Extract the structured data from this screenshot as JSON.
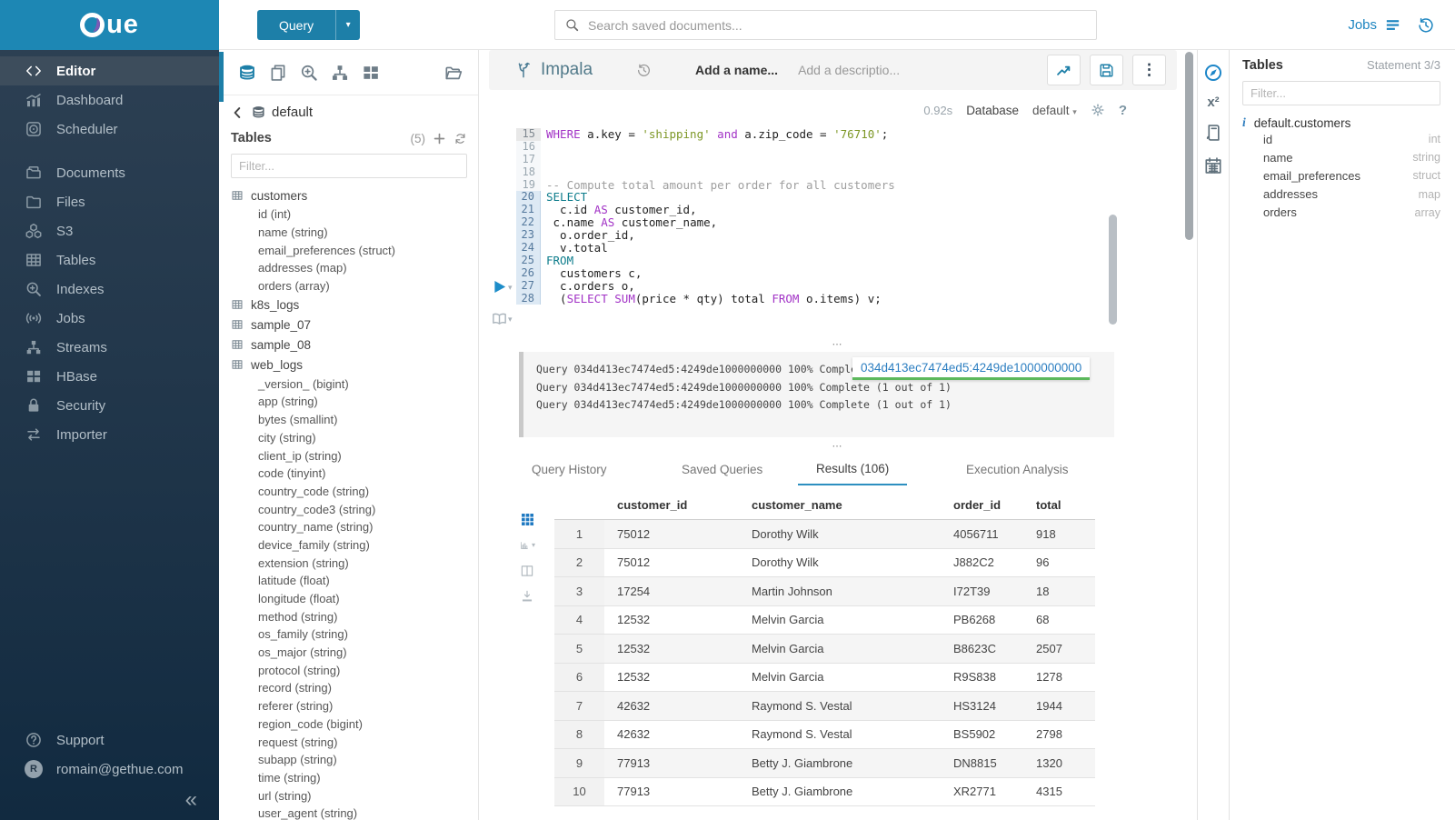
{
  "colors": {
    "brand": "#1d87b4",
    "accent": "#1d85c0",
    "button": "#1d7fa8",
    "success": "#5cb85c",
    "keyword": "#a233c6",
    "keyword_alt": "#0e7d8c",
    "string": "#7d9726",
    "comment": "#9e9e9e",
    "tab_underline": "#2d8fc0"
  },
  "topbar": {
    "query_button": "Query",
    "search_placeholder": "Search saved documents...",
    "jobs_label": "Jobs"
  },
  "brand": {
    "logo_text": "ue"
  },
  "sidebar": {
    "items": [
      {
        "icon": "code-icon",
        "label": "Editor",
        "active": true
      },
      {
        "icon": "dashboard-icon",
        "label": "Dashboard"
      },
      {
        "icon": "scheduler-icon",
        "label": "Scheduler"
      },
      {
        "icon": "documents-icon",
        "label": "Documents",
        "gap": true
      },
      {
        "icon": "files-icon",
        "label": "Files"
      },
      {
        "icon": "s3-icon",
        "label": "S3"
      },
      {
        "icon": "tables-icon",
        "label": "Tables"
      },
      {
        "icon": "indexes-icon",
        "label": "Indexes"
      },
      {
        "icon": "jobs-icon",
        "label": "Jobs"
      },
      {
        "icon": "streams-icon",
        "label": "Streams"
      },
      {
        "icon": "hbase-icon",
        "label": "HBase"
      },
      {
        "icon": "security-icon",
        "label": "Security"
      },
      {
        "icon": "importer-icon",
        "label": "Importer"
      }
    ],
    "footer": {
      "support": "Support",
      "user_initial": "R",
      "user_email": "romain@gethue.com"
    }
  },
  "left_assist": {
    "breadcrumb": "default",
    "tables_label": "Tables",
    "tables_count": "(5)",
    "filter_placeholder": "Filter...",
    "tree": [
      {
        "kind": "table",
        "label": "customers"
      },
      {
        "kind": "column",
        "label": "id (int)"
      },
      {
        "kind": "column",
        "label": "name (string)"
      },
      {
        "kind": "column",
        "label": "email_preferences (struct)"
      },
      {
        "kind": "column",
        "label": "addresses (map)"
      },
      {
        "kind": "column",
        "label": "orders (array)"
      },
      {
        "kind": "table",
        "label": "k8s_logs"
      },
      {
        "kind": "table",
        "label": "sample_07"
      },
      {
        "kind": "table",
        "label": "sample_08"
      },
      {
        "kind": "table",
        "label": "web_logs"
      },
      {
        "kind": "column",
        "label": "_version_ (bigint)"
      },
      {
        "kind": "column",
        "label": "app (string)"
      },
      {
        "kind": "column",
        "label": "bytes (smallint)"
      },
      {
        "kind": "column",
        "label": "city (string)"
      },
      {
        "kind": "column",
        "label": "client_ip (string)"
      },
      {
        "kind": "column",
        "label": "code (tinyint)"
      },
      {
        "kind": "column",
        "label": "country_code (string)"
      },
      {
        "kind": "column",
        "label": "country_code3 (string)"
      },
      {
        "kind": "column",
        "label": "country_name (string)"
      },
      {
        "kind": "column",
        "label": "device_family (string)"
      },
      {
        "kind": "column",
        "label": "extension (string)"
      },
      {
        "kind": "column",
        "label": "latitude (float)"
      },
      {
        "kind": "column",
        "label": "longitude (float)"
      },
      {
        "kind": "column",
        "label": "method (string)"
      },
      {
        "kind": "column",
        "label": "os_family (string)"
      },
      {
        "kind": "column",
        "label": "os_major (string)"
      },
      {
        "kind": "column",
        "label": "protocol (string)"
      },
      {
        "kind": "column",
        "label": "record (string)"
      },
      {
        "kind": "column",
        "label": "referer (string)"
      },
      {
        "kind": "column",
        "label": "region_code (bigint)"
      },
      {
        "kind": "column",
        "label": "request (string)"
      },
      {
        "kind": "column",
        "label": "subapp (string)"
      },
      {
        "kind": "column",
        "label": "time (string)"
      },
      {
        "kind": "column",
        "label": "url (string)"
      },
      {
        "kind": "column",
        "label": "user_agent (string)"
      }
    ]
  },
  "editor": {
    "engine": "Impala",
    "name_placeholder": "Add a name...",
    "description_placeholder": "Add a descriptio...",
    "exec_time": "0.92s",
    "database_label": "Database",
    "database_value": "default",
    "code_lines": [
      {
        "n": "15",
        "flag": "u",
        "seg": [
          [
            "k",
            "WHERE"
          ],
          [
            "t",
            " a.key = "
          ],
          [
            "s",
            "'shipping'"
          ],
          [
            "t",
            " "
          ],
          [
            "k",
            "and"
          ],
          [
            "t",
            " a.zip_code = "
          ],
          [
            "s",
            "'76710'"
          ],
          [
            "t",
            ";"
          ]
        ]
      },
      {
        "n": "16",
        "flag": "",
        "seg": []
      },
      {
        "n": "17",
        "flag": "",
        "seg": []
      },
      {
        "n": "18",
        "flag": "",
        "seg": []
      },
      {
        "n": "19",
        "flag": "",
        "seg": [
          [
            "c",
            "-- Compute total amount per order for all customers"
          ]
        ]
      },
      {
        "n": "20",
        "flag": "a",
        "seg": [
          [
            "e",
            "SELECT"
          ]
        ]
      },
      {
        "n": "21",
        "flag": "a",
        "seg": [
          [
            "t",
            "  c.id "
          ],
          [
            "k",
            "AS"
          ],
          [
            "t",
            " customer_id,"
          ]
        ]
      },
      {
        "n": "22",
        "flag": "a",
        "seg": [
          [
            "t",
            " c.name "
          ],
          [
            "k",
            "AS"
          ],
          [
            "t",
            " customer_name,"
          ]
        ]
      },
      {
        "n": "23",
        "flag": "a",
        "seg": [
          [
            "t",
            "  o.order_id,"
          ]
        ]
      },
      {
        "n": "24",
        "flag": "a",
        "seg": [
          [
            "t",
            "  v.total"
          ]
        ]
      },
      {
        "n": "25",
        "flag": "a",
        "seg": [
          [
            "e",
            "FROM"
          ]
        ]
      },
      {
        "n": "26",
        "flag": "a",
        "seg": [
          [
            "t",
            "  customers c,"
          ]
        ]
      },
      {
        "n": "27",
        "flag": "a",
        "seg": [
          [
            "t",
            "  c.orders o,"
          ]
        ]
      },
      {
        "n": "28",
        "flag": "a",
        "seg": [
          [
            "t",
            "  ("
          ],
          [
            "k",
            "SELECT"
          ],
          [
            "t",
            " "
          ],
          [
            "k",
            "SUM"
          ],
          [
            "t",
            "(price * qty) total "
          ],
          [
            "k",
            "FROM"
          ],
          [
            "t",
            " o.items) v;"
          ]
        ]
      }
    ],
    "log_lines": [
      "Query 034d413ec7474ed5:4249de1000000000 100% Complete (1 out of 1)",
      "Query 034d413ec7474ed5:4249de1000000000 100% Complete (1 out of 1)",
      "Query 034d413ec7474ed5:4249de1000000000 100% Complete (1 out of 1)"
    ],
    "tooltip": "034d413ec7474ed5:4249de1000000000"
  },
  "tabs": [
    {
      "label": "Query History",
      "active": false
    },
    {
      "label": "Saved Queries",
      "active": false
    },
    {
      "label": "Results (106)",
      "active": true
    },
    {
      "label": "Execution Analysis",
      "active": false
    }
  ],
  "results": {
    "columns": [
      "customer_id",
      "customer_name",
      "order_id",
      "total"
    ],
    "rows": [
      [
        "1",
        "75012",
        "Dorothy Wilk",
        "4056711",
        "918"
      ],
      [
        "2",
        "75012",
        "Dorothy Wilk",
        "J882C2",
        "96"
      ],
      [
        "3",
        "17254",
        "Martin Johnson",
        "I72T39",
        "18"
      ],
      [
        "4",
        "12532",
        "Melvin Garcia",
        "PB6268",
        "68"
      ],
      [
        "5",
        "12532",
        "Melvin Garcia",
        "B8623C",
        "2507"
      ],
      [
        "6",
        "12532",
        "Melvin Garcia",
        "R9S838",
        "1278"
      ],
      [
        "7",
        "42632",
        "Raymond S. Vestal",
        "HS3124",
        "1944"
      ],
      [
        "8",
        "42632",
        "Raymond S. Vestal",
        "BS5902",
        "2798"
      ],
      [
        "9",
        "77913",
        "Betty J. Giambrone",
        "DN8815",
        "1320"
      ],
      [
        "10",
        "77913",
        "Betty J. Giambrone",
        "XR2771",
        "4315"
      ]
    ]
  },
  "right_panel": {
    "title": "Tables",
    "statement": "Statement 3/3",
    "filter_placeholder": "Filter...",
    "table_name": "default.customers",
    "columns": [
      {
        "name": "id",
        "type": "int"
      },
      {
        "name": "name",
        "type": "string"
      },
      {
        "name": "email_preferences",
        "type": "struct"
      },
      {
        "name": "addresses",
        "type": "map"
      },
      {
        "name": "orders",
        "type": "array"
      }
    ]
  }
}
